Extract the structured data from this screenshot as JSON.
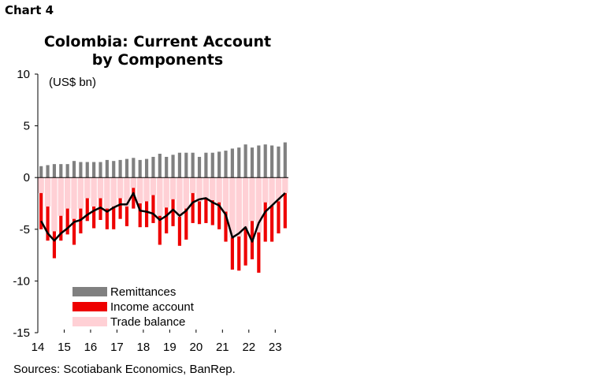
{
  "header": {
    "chart_label": "Chart 4",
    "title_line1": "Colombia: Current Account",
    "title_line2": "by Components"
  },
  "source": "Sources: Scotiabank Economics, BanRep.",
  "colors": {
    "remittances": "#808080",
    "income_account": "#ee0000",
    "trade_balance": "#ffd0d5",
    "current_account_line": "#000000",
    "axis": "#000000"
  },
  "chart_data": {
    "type": "bar",
    "stacked": true,
    "title": "Colombia: Current Account by Components",
    "unit_label": "(US$ bn)",
    "ylim": [
      -15,
      10
    ],
    "yticks": [
      10,
      5,
      0,
      -5,
      -10,
      -15
    ],
    "xticks": [
      "14",
      "15",
      "16",
      "17",
      "18",
      "19",
      "20",
      "21",
      "22",
      "23"
    ],
    "x_start_year": 2014,
    "periods_per_year": 4,
    "legend_position": "lower-left",
    "series": [
      {
        "name": "Remittances",
        "kind": "bar",
        "values": [
          1.1,
          1.2,
          1.3,
          1.3,
          1.3,
          1.6,
          1.5,
          1.5,
          1.5,
          1.5,
          1.7,
          1.6,
          1.7,
          1.8,
          1.9,
          1.7,
          1.8,
          2.0,
          2.3,
          2.0,
          2.2,
          2.4,
          2.4,
          2.4,
          2.0,
          2.4,
          2.4,
          2.5,
          2.6,
          2.8,
          2.9,
          3.2,
          2.9,
          3.1,
          3.2,
          3.1,
          3.0,
          3.4
        ]
      },
      {
        "name": "Income account",
        "kind": "bar",
        "values": [
          -3.5,
          -3.3,
          -2.6,
          -2.4,
          -2.5,
          -2.5,
          -2.4,
          -2.2,
          -2.1,
          -2.1,
          -2.0,
          -2.2,
          -2.0,
          -1.9,
          -2.0,
          -2.3,
          -2.5,
          -2.7,
          -2.8,
          -2.5,
          -2.6,
          -2.8,
          -3.0,
          -2.9,
          -2.2,
          -2.4,
          -2.4,
          -2.6,
          -2.9,
          -3.1,
          -3.3,
          -3.5,
          -3.7,
          -3.9,
          -3.8,
          -3.5,
          -3.1,
          -3.4
        ]
      },
      {
        "name": "Trade balance",
        "kind": "bar",
        "values": [
          -1.5,
          -2.8,
          -5.2,
          -3.7,
          -3.0,
          -4.0,
          -3.0,
          -2.0,
          -2.8,
          -2.0,
          -3.0,
          -2.8,
          -2.0,
          -2.8,
          -1.0,
          -2.5,
          -2.3,
          -1.7,
          -3.7,
          -2.9,
          -2.1,
          -3.8,
          -3.0,
          -1.5,
          -2.3,
          -2.0,
          -2.2,
          -2.4,
          -3.3,
          -5.8,
          -5.7,
          -5.0,
          -4.2,
          -5.3,
          -2.4,
          -2.7,
          -2.3,
          -1.5
        ]
      },
      {
        "name": "Current account",
        "kind": "line",
        "values": [
          -4.2,
          -5.4,
          -6.1,
          -5.4,
          -4.9,
          -4.3,
          -4.1,
          -3.6,
          -3.2,
          -2.9,
          -3.3,
          -2.9,
          -2.6,
          -2.6,
          -1.5,
          -3.2,
          -3.3,
          -3.5,
          -4.1,
          -3.7,
          -3.1,
          -3.7,
          -3.2,
          -2.4,
          -2.1,
          -2.0,
          -2.4,
          -2.7,
          -3.6,
          -5.8,
          -5.4,
          -4.8,
          -6.2,
          -4.4,
          -3.3,
          -2.7,
          -2.1,
          -1.5
        ]
      }
    ]
  }
}
